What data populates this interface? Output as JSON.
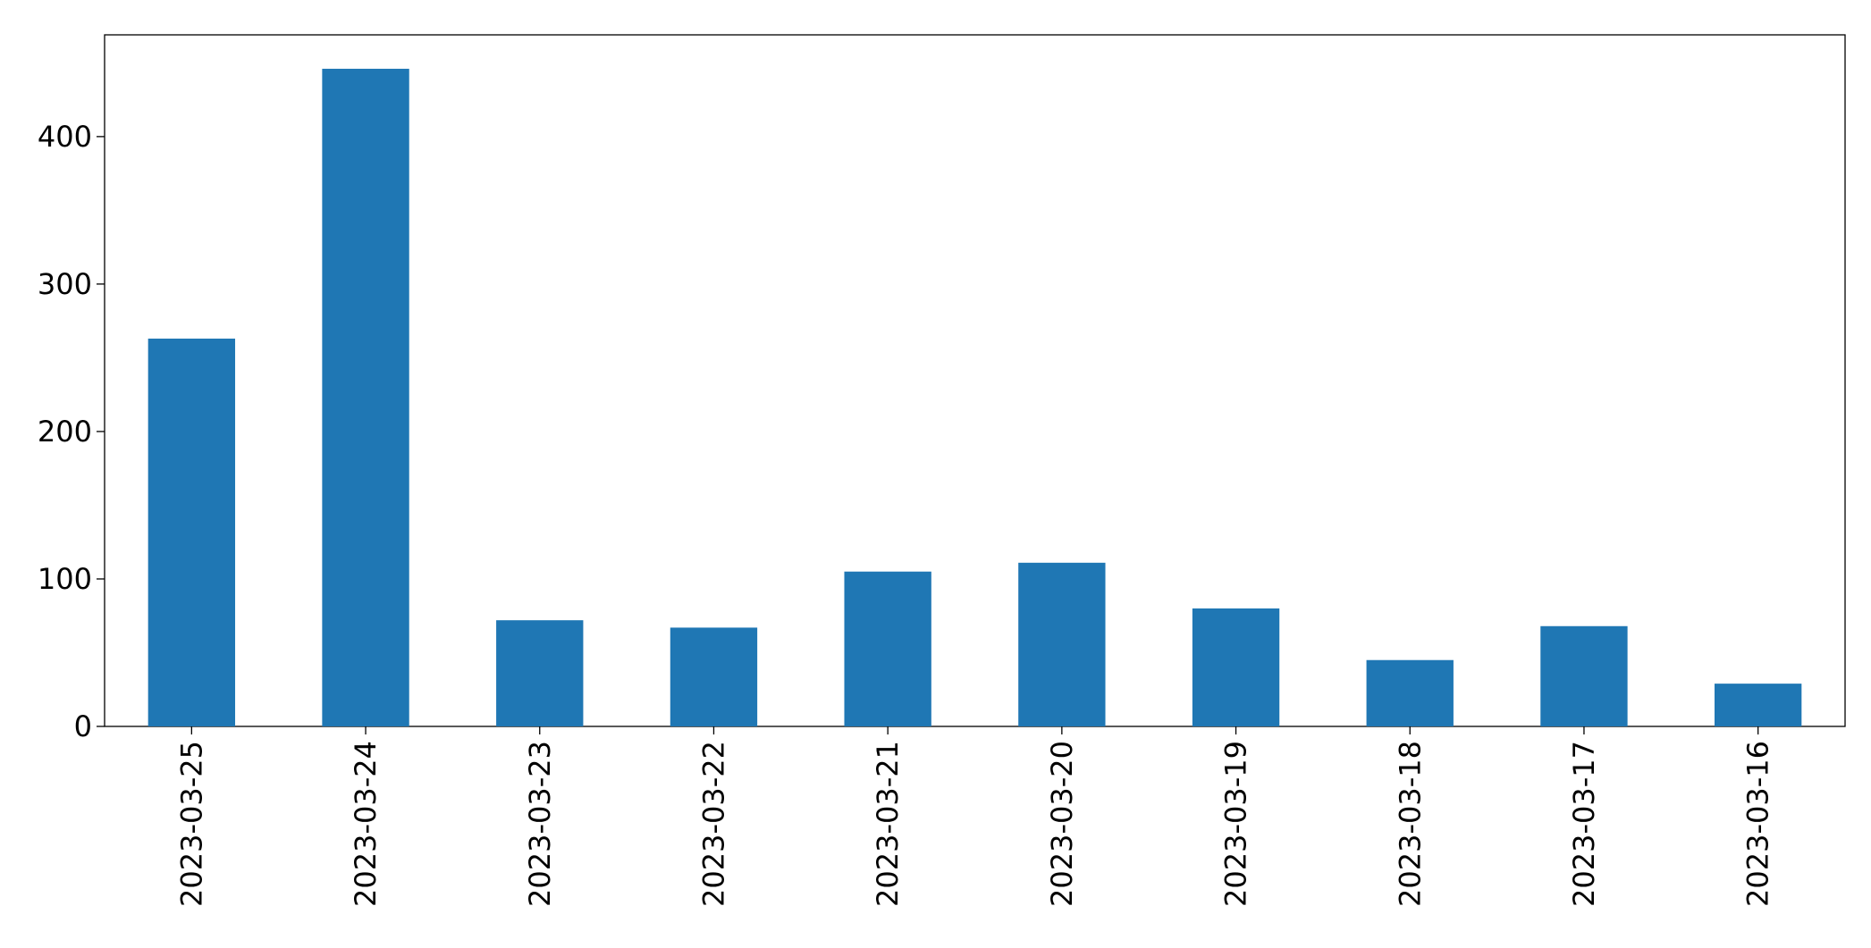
{
  "chart_data": {
    "type": "bar",
    "categories": [
      "2023-03-25",
      "2023-03-24",
      "2023-03-23",
      "2023-03-22",
      "2023-03-21",
      "2023-03-20",
      "2023-03-19",
      "2023-03-18",
      "2023-03-17",
      "2023-03-16"
    ],
    "values": [
      263,
      446,
      72,
      67,
      105,
      111,
      80,
      45,
      68,
      29
    ],
    "color": "#1f77b4",
    "ylim": [
      0,
      469
    ],
    "yticks": [
      0,
      100,
      200,
      300,
      400
    ],
    "grid": false
  }
}
